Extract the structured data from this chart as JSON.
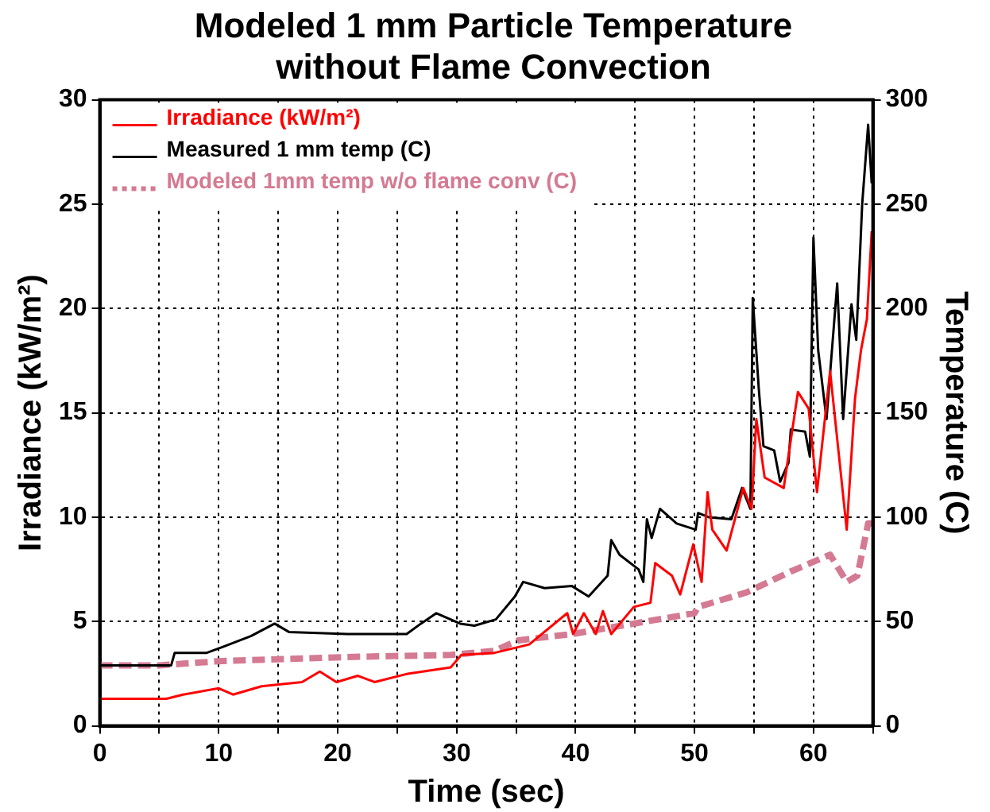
{
  "chart_data": {
    "type": "line",
    "title": "Modeled 1 mm Particle Temperature without Flame Convection",
    "xlabel": "Time (sec)",
    "ylabel": "Irradiance (kW/m²)",
    "y2label": "Temperature (C)",
    "xlim": [
      0,
      65
    ],
    "xticks": [
      0,
      {
        "value": 5,
        "label": null
      },
      10,
      {
        "value": 15,
        "label": null
      },
      20,
      {
        "value": 25,
        "label": null
      },
      30,
      {
        "value": 35,
        "label": null
      },
      40,
      {
        "value": 45,
        "label": null
      },
      50,
      {
        "value": 55,
        "label": null
      },
      60,
      {
        "value": 65,
        "label": null
      }
    ],
    "ylim": [
      0,
      30
    ],
    "yticks": [
      0,
      5,
      10,
      15,
      20,
      25,
      30
    ],
    "y2lim": [
      0,
      300
    ],
    "y2ticks": [
      0,
      50,
      100,
      150,
      200,
      250,
      300
    ],
    "grid": true,
    "legend": "top left",
    "marker": "none",
    "series": [
      {
        "name": "Irradiance (kW/m²)",
        "color": "#ff0000",
        "line_style": "solid",
        "x": [
          0,
          5.6,
          7.0,
          10.0,
          11.2,
          13.6,
          17.0,
          18.5,
          19.9,
          21.7,
          23.1,
          25.9,
          29.5,
          30.4,
          33.2,
          36.1,
          39.3,
          39.8,
          40.7,
          41.7,
          42.3,
          43.0,
          44.9,
          46.3,
          46.7,
          48.1,
          48.8,
          49.9,
          50.6,
          51.1,
          51.5,
          52.7,
          54.1,
          54.8,
          55.2,
          55.9,
          57.5,
          58.7,
          59.6,
          60.3,
          61.4,
          62.1,
          62.8,
          63.5,
          64.0,
          64.5,
          64.9
        ],
        "values": [
          1.3,
          1.3,
          1.5,
          1.8,
          1.5,
          1.9,
          2.1,
          2.6,
          2.1,
          2.4,
          2.1,
          2.5,
          2.8,
          3.4,
          3.5,
          3.9,
          5.4,
          4.4,
          5.4,
          4.4,
          5.5,
          4.4,
          5.7,
          5.9,
          7.8,
          7.2,
          6.3,
          8.7,
          6.9,
          11.2,
          9.4,
          8.4,
          11.4,
          10.4,
          14.7,
          11.9,
          11.4,
          16.0,
          15.2,
          11.2,
          17.0,
          13.2,
          9.4,
          15.7,
          18.0,
          19.5,
          23.7
        ]
      },
      {
        "name": "Measured 1 mm temp (C)",
        "color": "#000000",
        "line_style": "solid",
        "axis": "y2",
        "x": [
          0,
          6.0,
          6.3,
          9.0,
          10.4,
          12.7,
          14.7,
          15.9,
          20.8,
          25.8,
          27.0,
          28.3,
          30.3,
          31.5,
          33.3,
          34.9,
          35.6,
          37.4,
          39.7,
          41.1,
          42.7,
          43.0,
          43.7,
          45.3,
          45.7,
          46.0,
          46.4,
          47.1,
          48.5,
          50.1,
          50.3,
          51.2,
          53.1,
          54.0,
          54.7,
          54.9,
          55.4,
          55.8,
          56.7,
          57.2,
          57.9,
          58.1,
          59.3,
          59.7,
          60.0,
          60.4,
          61.1,
          62.0,
          62.5,
          63.2,
          63.6,
          64.1,
          64.6,
          64.9
        ],
        "values": [
          29,
          29,
          35,
          35,
          38,
          43,
          49,
          45,
          44,
          44,
          49,
          54,
          49,
          48,
          51,
          62,
          69,
          66,
          67,
          62,
          72,
          89,
          82,
          75,
          69,
          99,
          90,
          104,
          97,
          94,
          102,
          100,
          99,
          114,
          104,
          205,
          162,
          134,
          132,
          117,
          126,
          142,
          141,
          129,
          234,
          180,
          147,
          212,
          147,
          202,
          185,
          250,
          288,
          260
        ]
      },
      {
        "name": "Modeled 1mm temp w/o flame conv (C)",
        "color": "#d47a92",
        "line_style": "dashed",
        "axis": "y2",
        "x": [
          0,
          5,
          10,
          20.8,
          29.5,
          33.2,
          35.2,
          39.7,
          44.9,
          50.0,
          50.3,
          54.4,
          58.1,
          61.4,
          62.8,
          63.7,
          64.6,
          65
        ],
        "values": [
          29,
          29,
          31,
          33,
          34,
          36,
          41,
          44,
          49,
          54,
          57,
          64,
          74,
          82,
          69,
          72,
          97,
          97
        ]
      }
    ]
  }
}
